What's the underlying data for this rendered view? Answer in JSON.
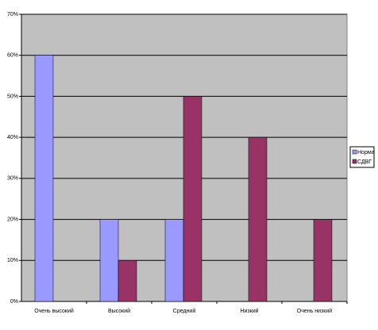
{
  "chart_data": {
    "type": "bar",
    "categories": [
      "Очень высокий",
      "Высокий",
      "Средний",
      "Низкий",
      "Очень низкий"
    ],
    "series": [
      {
        "name": "Норма",
        "color": "#9999ff",
        "values": [
          60,
          20,
          20,
          0,
          0
        ]
      },
      {
        "name": "СДВГ",
        "color": "#993366",
        "values": [
          0,
          10,
          50,
          40,
          20
        ]
      }
    ],
    "ylim": [
      0,
      70
    ],
    "yticks": [
      {
        "value": 0,
        "label": "0%"
      },
      {
        "value": 10,
        "label": "10%"
      },
      {
        "value": 20,
        "label": "20%"
      },
      {
        "value": 30,
        "label": "30%"
      },
      {
        "value": 40,
        "label": "40%"
      },
      {
        "value": 50,
        "label": "50%"
      },
      {
        "value": 60,
        "label": "60%"
      },
      {
        "value": 70,
        "label": "70%"
      }
    ],
    "grid": true,
    "legend": "right"
  }
}
